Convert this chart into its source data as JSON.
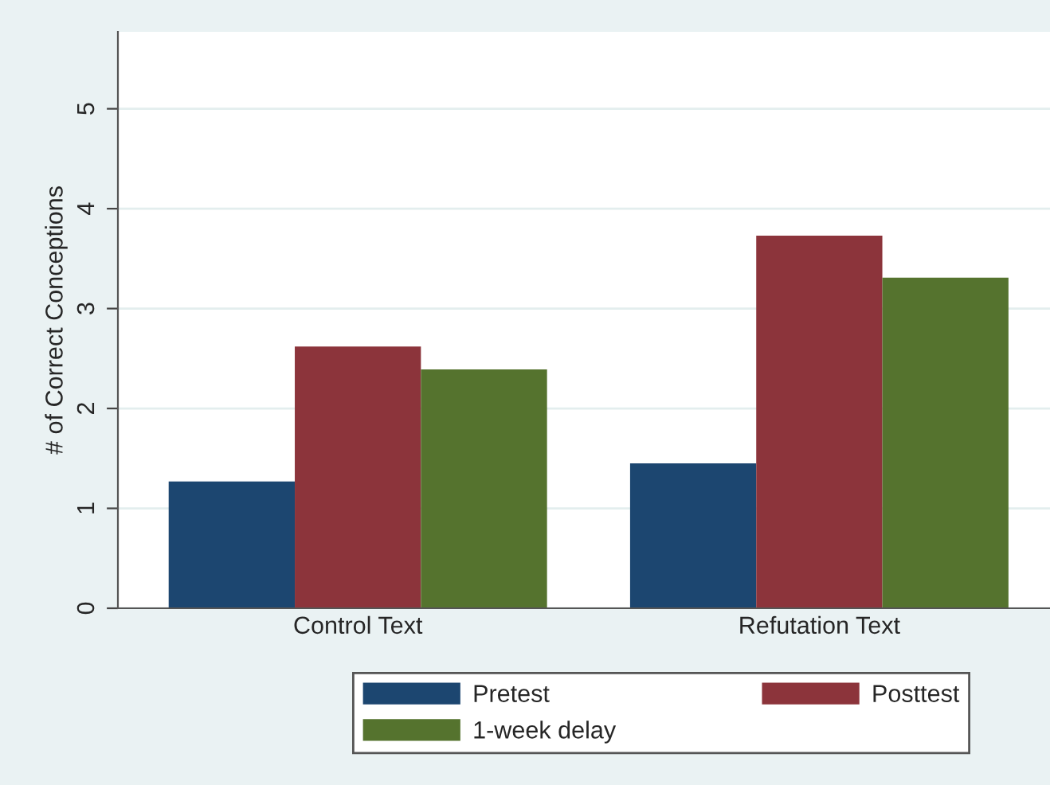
{
  "chart_data": {
    "type": "bar",
    "ylabel": "# of Correct Conceptions",
    "categories": [
      "Control Text",
      "Refutation Text"
    ],
    "series": [
      {
        "name": "Pretest",
        "color": "#1c4670",
        "values": [
          1.27,
          1.45
        ]
      },
      {
        "name": "Posttest",
        "color": "#8c343b",
        "values": [
          2.62,
          3.73
        ]
      },
      {
        "name": "1-week delay",
        "color": "#55732e",
        "values": [
          2.39,
          3.31
        ]
      }
    ],
    "ylim": [
      0,
      5.77
    ],
    "yticks": [
      0,
      1,
      2,
      3,
      4,
      5
    ],
    "grid": "y",
    "legend": "bottom"
  }
}
